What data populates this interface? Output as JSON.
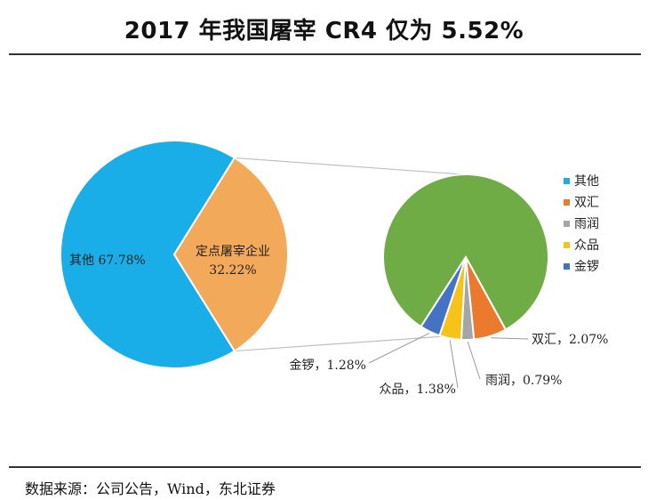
{
  "header": {
    "title": "2017 年我国屠宰 CR4 仅为 5.52%"
  },
  "footer": {
    "source": "数据来源：公司公告，Wind，东北证券"
  },
  "chart_data": {
    "type": "pie",
    "title": "2017 年我国屠宰 CR4 仅为 5.52%",
    "main_pie": {
      "slices": [
        {
          "name": "其他",
          "label": "其他 67.78%",
          "value": 67.78,
          "color": "#1aaee8"
        },
        {
          "name": "定点屠宰企业",
          "label_line1": "定点屠宰企业",
          "label_line2": "32.22%",
          "value": 32.22,
          "color": "#f2a95a"
        }
      ]
    },
    "sub_pie": {
      "slices": [
        {
          "name": "其他",
          "value": 26.7,
          "color": "#6fac45",
          "label": ""
        },
        {
          "name": "双汇",
          "value": 2.07,
          "color": "#eb7a2e",
          "label": "双汇，2.07%"
        },
        {
          "name": "雨润",
          "value": 0.79,
          "color": "#a5a5a5",
          "label": "雨润，0.79%"
        },
        {
          "name": "众品",
          "value": 1.38,
          "color": "#f7c319",
          "label": "众品，1.38%"
        },
        {
          "name": "金锣",
          "value": 1.28,
          "color": "#4573c4",
          "label": "金锣，1.28%"
        }
      ]
    },
    "legend": {
      "position": "right",
      "items": [
        {
          "name": "其他",
          "color": "#1aaee8"
        },
        {
          "name": "双汇",
          "color": "#eb7a2e"
        },
        {
          "name": "雨润",
          "color": "#a5a5a5"
        },
        {
          "name": "众品",
          "color": "#f7c319"
        },
        {
          "name": "金锣",
          "color": "#4573c4"
        }
      ]
    }
  }
}
